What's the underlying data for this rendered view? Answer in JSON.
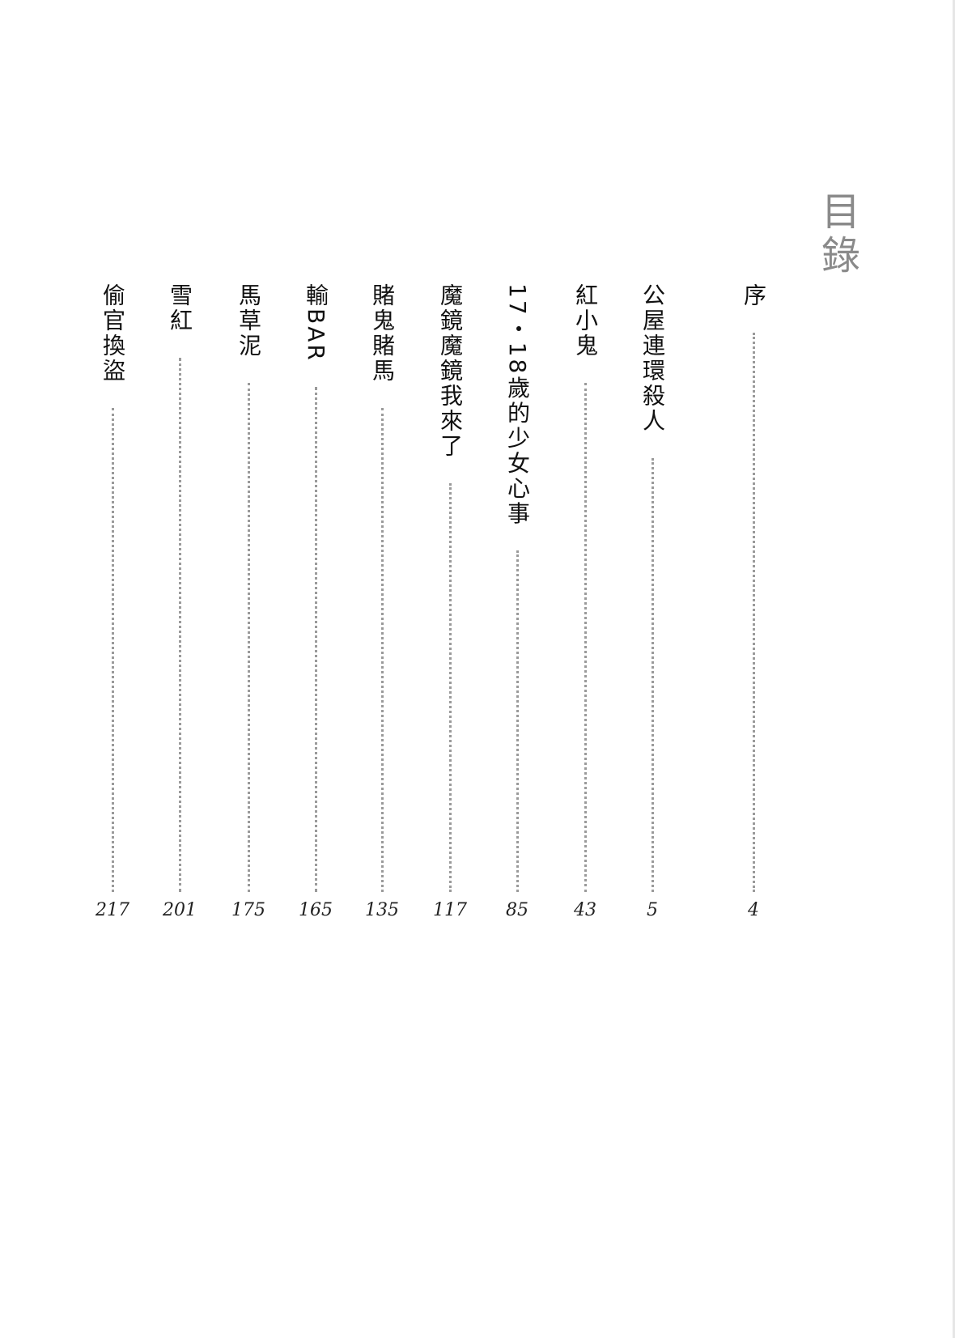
{
  "heading": "目錄",
  "entries": [
    {
      "title": "序",
      "page": "4"
    },
    {
      "title": "公屋連環殺人",
      "page": "5"
    },
    {
      "title": "紅小鬼",
      "page": "43"
    },
    {
      "title": "17・18歲的少女心事",
      "page": "85"
    },
    {
      "title": "魔鏡魔鏡我來了",
      "page": "117"
    },
    {
      "title": "賭鬼賭馬",
      "page": "135"
    },
    {
      "title": "輸BAR",
      "page": "165"
    },
    {
      "title": "馬草泥",
      "page": "175"
    },
    {
      "title": "雪紅",
      "page": "201"
    },
    {
      "title": "偷官換盜",
      "page": "217"
    }
  ]
}
